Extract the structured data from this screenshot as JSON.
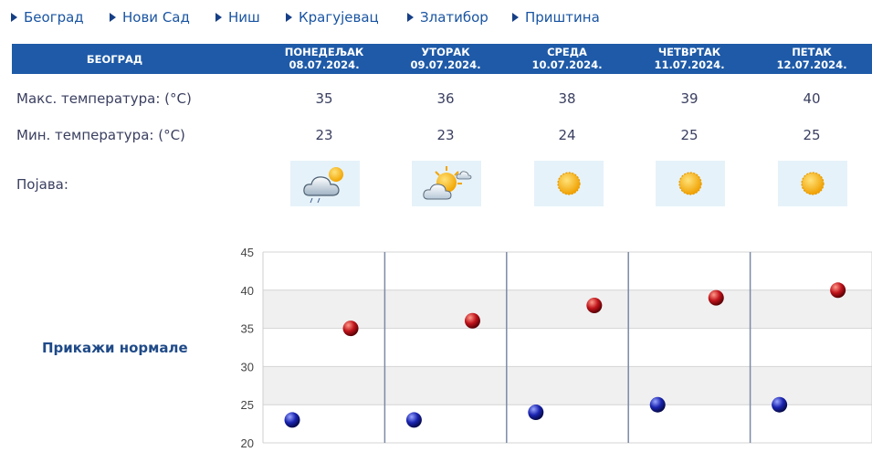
{
  "nav": {
    "cities": [
      "Београд",
      "Нови Сад",
      "Ниш",
      "Крагујевац",
      "Златибор",
      "Приштина"
    ]
  },
  "table": {
    "city_header": "БЕОГРАД",
    "days": [
      {
        "name": "ПОНЕДЕЉАК",
        "date": "08.07.2024.",
        "max": "35",
        "min": "23",
        "icon": "cloud-rain-sun-icon"
      },
      {
        "name": "УТОРАК",
        "date": "09.07.2024.",
        "max": "36",
        "min": "23",
        "icon": "sun-cloud-icon"
      },
      {
        "name": "СРЕДА",
        "date": "10.07.2024.",
        "max": "38",
        "min": "24",
        "icon": "sun-icon"
      },
      {
        "name": "ЧЕТВРТАК",
        "date": "11.07.2024.",
        "max": "39",
        "min": "25",
        "icon": "sun-icon"
      },
      {
        "name": "ПЕТАК",
        "date": "12.07.2024.",
        "max": "40",
        "min": "25",
        "icon": "sun-icon"
      }
    ],
    "row_labels": {
      "max": "Макс. температура: (°C)",
      "min": "Мин. температура: (°C)",
      "phenomenon": "Појава:"
    }
  },
  "show_normals_label": "Прикажи нормале",
  "colors": {
    "header_bg": "#1e5aa8",
    "link": "#1a55a2",
    "max_marker": "#c0141b",
    "min_marker": "#1a24b0",
    "icon_tile_bg": "#e6f2f9"
  },
  "chart_data": {
    "type": "scatter",
    "y_ticks": [
      "45",
      "40",
      "35",
      "30",
      "25",
      "20"
    ],
    "ylim": [
      20,
      45
    ],
    "categories": [
      "08.07.2024.",
      "09.07.2024.",
      "10.07.2024.",
      "11.07.2024.",
      "12.07.2024."
    ],
    "series": [
      {
        "values": [
          35,
          36,
          38,
          39,
          40
        ],
        "color": "#c0141b"
      },
      {
        "values": [
          23,
          23,
          24,
          25,
          25
        ],
        "color": "#1a24b0"
      }
    ],
    "grid": true
  }
}
